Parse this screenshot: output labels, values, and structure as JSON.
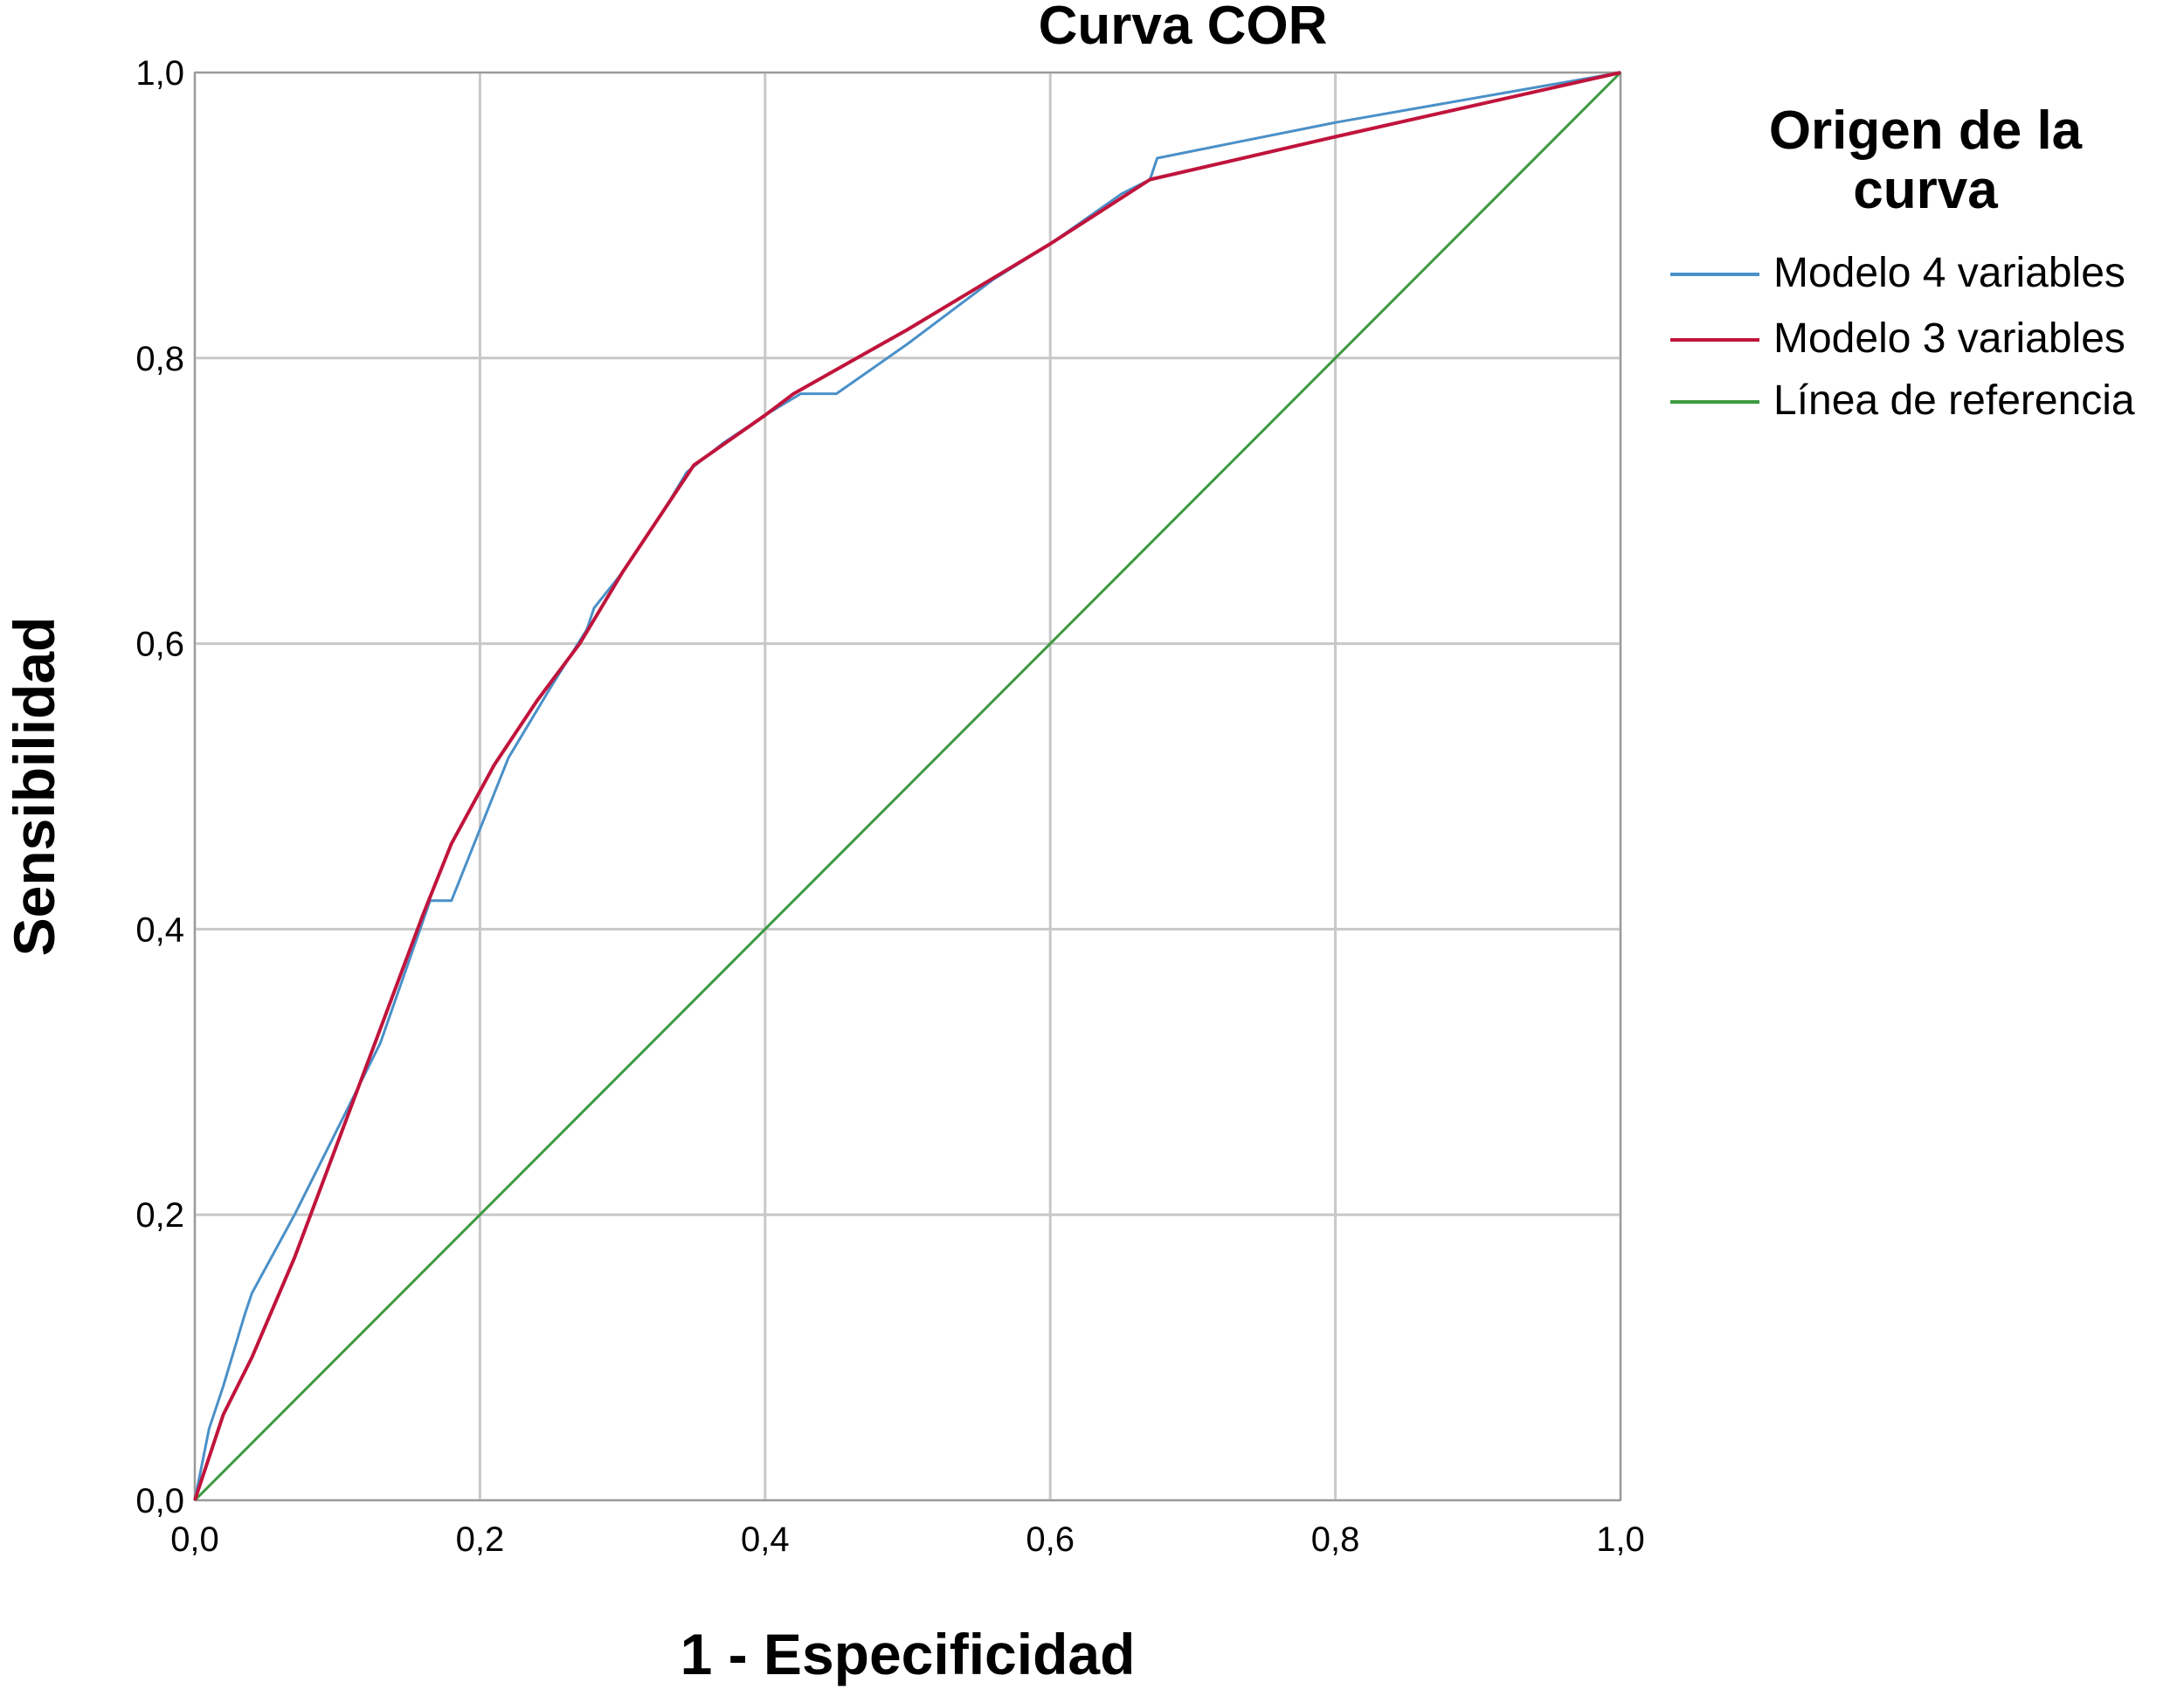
{
  "chart_data": {
    "type": "line",
    "title": "Curva COR",
    "xlabel": "1 - Especificidad",
    "ylabel": "Sensibilidad",
    "xlim": [
      0,
      1
    ],
    "ylim": [
      0,
      1
    ],
    "x_ticks": [
      {
        "value": 0.0,
        "label": "0,0"
      },
      {
        "value": 0.2,
        "label": "0,2"
      },
      {
        "value": 0.4,
        "label": "0,4"
      },
      {
        "value": 0.6,
        "label": "0,6"
      },
      {
        "value": 0.8,
        "label": "0,8"
      },
      {
        "value": 1.0,
        "label": "1,0"
      }
    ],
    "y_ticks": [
      {
        "value": 0.0,
        "label": "0,0"
      },
      {
        "value": 0.2,
        "label": "0,2"
      },
      {
        "value": 0.4,
        "label": "0,4"
      },
      {
        "value": 0.6,
        "label": "0,6"
      },
      {
        "value": 0.8,
        "label": "0,8"
      },
      {
        "value": 1.0,
        "label": "1,0"
      }
    ],
    "grid": true,
    "legend": {
      "title": "Origen de la curva",
      "title_lines": [
        "Origen de la",
        "curva"
      ],
      "placement": "right"
    },
    "series": [
      {
        "name": "Modelo 4 variables",
        "color": "#4a90c8",
        "points": [
          [
            0.0,
            0.0
          ],
          [
            0.01,
            0.05
          ],
          [
            0.02,
            0.08
          ],
          [
            0.035,
            0.13
          ],
          [
            0.04,
            0.145
          ],
          [
            0.07,
            0.2
          ],
          [
            0.1,
            0.26
          ],
          [
            0.13,
            0.32
          ],
          [
            0.165,
            0.42
          ],
          [
            0.18,
            0.42
          ],
          [
            0.22,
            0.52
          ],
          [
            0.25,
            0.57
          ],
          [
            0.275,
            0.61
          ],
          [
            0.28,
            0.625
          ],
          [
            0.3,
            0.65
          ],
          [
            0.33,
            0.695
          ],
          [
            0.345,
            0.72
          ],
          [
            0.37,
            0.74
          ],
          [
            0.4,
            0.76
          ],
          [
            0.425,
            0.775
          ],
          [
            0.45,
            0.775
          ],
          [
            0.5,
            0.81
          ],
          [
            0.56,
            0.855
          ],
          [
            0.6,
            0.88
          ],
          [
            0.65,
            0.915
          ],
          [
            0.67,
            0.925
          ],
          [
            0.675,
            0.94
          ],
          [
            0.8,
            0.965
          ],
          [
            1.0,
            1.0
          ]
        ]
      },
      {
        "name": "Modelo 3 variables",
        "color": "#c0143c",
        "points": [
          [
            0.0,
            0.0
          ],
          [
            0.02,
            0.06
          ],
          [
            0.04,
            0.1
          ],
          [
            0.07,
            0.17
          ],
          [
            0.1,
            0.25
          ],
          [
            0.13,
            0.33
          ],
          [
            0.16,
            0.41
          ],
          [
            0.18,
            0.46
          ],
          [
            0.21,
            0.515
          ],
          [
            0.24,
            0.56
          ],
          [
            0.27,
            0.6
          ],
          [
            0.3,
            0.65
          ],
          [
            0.35,
            0.725
          ],
          [
            0.4,
            0.76
          ],
          [
            0.42,
            0.775
          ],
          [
            0.5,
            0.82
          ],
          [
            0.6,
            0.88
          ],
          [
            0.67,
            0.925
          ],
          [
            0.8,
            0.955
          ],
          [
            1.0,
            1.0
          ]
        ]
      },
      {
        "name": "Línea de referencia",
        "color": "#3c9a40",
        "points": [
          [
            0.0,
            0.0
          ],
          [
            1.0,
            1.0
          ]
        ]
      }
    ]
  }
}
